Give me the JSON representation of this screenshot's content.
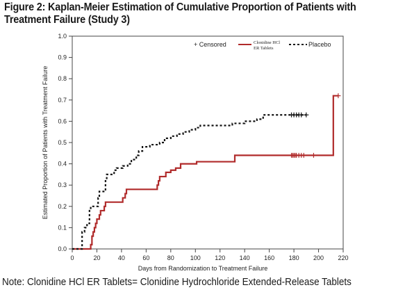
{
  "figure": {
    "title_line1": "Figure 2: Kaplan-Meier Estimation of Cumulative Proportion of Patients with",
    "title_line2": "Treatment Failure (Study 3)",
    "footnote": "Note: Clonidine HCl ER Tablets= Clonidine Hydrochloride Extended-Release Tablets"
  },
  "chart_data": {
    "type": "line",
    "subtype": "kaplan-meier-step",
    "xlabel": "Days from Randomization to Treatment Failure",
    "ylabel": "Estimated Proportion of Patients with Treatment Failure",
    "xlim": [
      0,
      220
    ],
    "ylim": [
      0.0,
      1.0
    ],
    "xticks": [
      "0",
      "20",
      "40",
      "60",
      "80",
      "100",
      "120",
      "140",
      "160",
      "180",
      "200",
      "220"
    ],
    "yticks": [
      "0.0",
      "0.1",
      "0.2",
      "0.3",
      "0.4",
      "0.5",
      "0.6",
      "0.7",
      "0.8",
      "0.9",
      "1.0"
    ],
    "grid": false,
    "legend": {
      "position": "top-right",
      "censored_label": "+ Censored",
      "entries": [
        {
          "label_line1": "Clonidine HCl",
          "label_line2": "ER Tablets",
          "color": "#b02a2a",
          "style": "solid"
        },
        {
          "label_line1": "Placebo",
          "label_line2": "",
          "color": "#111111",
          "style": "dashed"
        }
      ]
    },
    "series": [
      {
        "name": "Clonidine HCl ER Tablets",
        "color": "#b02a2a",
        "style": "solid",
        "steps": [
          [
            0,
            0.0
          ],
          [
            15,
            0.0
          ],
          [
            15,
            0.02
          ],
          [
            16,
            0.06
          ],
          [
            17,
            0.08
          ],
          [
            18,
            0.1
          ],
          [
            19,
            0.12
          ],
          [
            20,
            0.14
          ],
          [
            22,
            0.16
          ],
          [
            23,
            0.18
          ],
          [
            26,
            0.2
          ],
          [
            27,
            0.22
          ],
          [
            40,
            0.22
          ],
          [
            41,
            0.24
          ],
          [
            43,
            0.26
          ],
          [
            44,
            0.28
          ],
          [
            68,
            0.28
          ],
          [
            69,
            0.3
          ],
          [
            70,
            0.32
          ],
          [
            71,
            0.34
          ],
          [
            76,
            0.36
          ],
          [
            80,
            0.37
          ],
          [
            84,
            0.38
          ],
          [
            88,
            0.4
          ],
          [
            100,
            0.4
          ],
          [
            101,
            0.41
          ],
          [
            131,
            0.41
          ],
          [
            132,
            0.44
          ],
          [
            212,
            0.44
          ],
          [
            212,
            0.72
          ],
          [
            216,
            0.72
          ]
        ],
        "censored_x": [
          178,
          179,
          180,
          181,
          182,
          184,
          186,
          188,
          196,
          216
        ],
        "censored_y": [
          0.44,
          0.44,
          0.44,
          0.44,
          0.44,
          0.44,
          0.44,
          0.44,
          0.44,
          0.72
        ]
      },
      {
        "name": "Placebo",
        "color": "#111111",
        "style": "dashed",
        "steps": [
          [
            0,
            0.0
          ],
          [
            8,
            0.0
          ],
          [
            8,
            0.08
          ],
          [
            10,
            0.1
          ],
          [
            12,
            0.12
          ],
          [
            14,
            0.18
          ],
          [
            15,
            0.2
          ],
          [
            20,
            0.2
          ],
          [
            21,
            0.24
          ],
          [
            22,
            0.27
          ],
          [
            26,
            0.27
          ],
          [
            27,
            0.32
          ],
          [
            28,
            0.35
          ],
          [
            33,
            0.35
          ],
          [
            34,
            0.37
          ],
          [
            36,
            0.38
          ],
          [
            40,
            0.38
          ],
          [
            41,
            0.39
          ],
          [
            45,
            0.4
          ],
          [
            48,
            0.42
          ],
          [
            52,
            0.44
          ],
          [
            54,
            0.46
          ],
          [
            57,
            0.48
          ],
          [
            63,
            0.49
          ],
          [
            71,
            0.5
          ],
          [
            75,
            0.52
          ],
          [
            80,
            0.53
          ],
          [
            85,
            0.54
          ],
          [
            90,
            0.55
          ],
          [
            95,
            0.56
          ],
          [
            100,
            0.57
          ],
          [
            104,
            0.58
          ],
          [
            120,
            0.58
          ],
          [
            130,
            0.59
          ],
          [
            140,
            0.6
          ],
          [
            150,
            0.61
          ],
          [
            155,
            0.63
          ],
          [
            178,
            0.63
          ],
          [
            190,
            0.63
          ]
        ],
        "censored_x": [
          178,
          180,
          182,
          184,
          186,
          190
        ],
        "censored_y": [
          0.63,
          0.63,
          0.63,
          0.63,
          0.63,
          0.63
        ]
      }
    ]
  }
}
